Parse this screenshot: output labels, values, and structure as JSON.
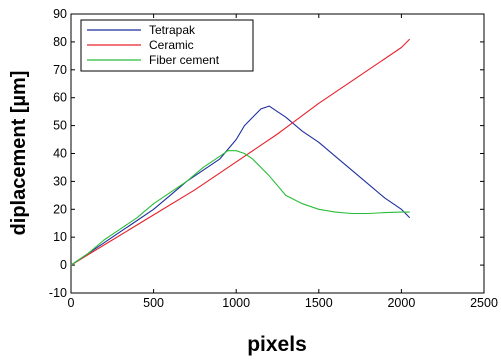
{
  "chart_data": {
    "type": "line",
    "title": "",
    "xlabel": "pixels",
    "ylabel": "diplacement [µm]",
    "xlim": [
      0,
      2500
    ],
    "ylim": [
      -10,
      90
    ],
    "x_ticks": [
      0,
      500,
      1000,
      1500,
      2000,
      2500
    ],
    "y_ticks": [
      -10,
      0,
      10,
      20,
      30,
      40,
      50,
      60,
      70,
      80,
      90
    ],
    "grid": false,
    "legend_position": "top-left",
    "series": [
      {
        "name": "Tetrapak",
        "color": "#1f2f9f",
        "x": [
          0,
          100,
          200,
          300,
          400,
          500,
          600,
          700,
          800,
          900,
          1000,
          1050,
          1100,
          1150,
          1200,
          1250,
          1300,
          1400,
          1500,
          1600,
          1700,
          1800,
          1900,
          2000,
          2050
        ],
        "y": [
          0,
          4,
          8,
          12,
          16,
          20,
          25,
          30,
          34,
          38,
          45,
          50,
          53,
          56,
          57,
          55,
          53,
          48,
          44,
          39,
          34,
          29,
          24,
          20,
          17
        ]
      },
      {
        "name": "Ceramic",
        "color": "#e8202a",
        "x": [
          0,
          250,
          500,
          750,
          1000,
          1250,
          1500,
          1750,
          2000,
          2050
        ],
        "y": [
          0,
          9,
          18,
          27,
          37,
          47,
          58,
          68,
          78,
          81
        ]
      },
      {
        "name": "Fiber cement",
        "color": "#2bbd3a",
        "x": [
          0,
          100,
          200,
          300,
          400,
          500,
          600,
          700,
          800,
          900,
          950,
          1000,
          1050,
          1100,
          1200,
          1300,
          1400,
          1500,
          1600,
          1700,
          1800,
          1900,
          2000,
          2050
        ],
        "y": [
          0,
          4,
          9,
          13,
          17,
          22,
          26,
          30,
          35,
          39,
          41,
          41,
          40,
          38,
          32,
          25,
          22,
          20,
          19,
          18.5,
          18.5,
          18.8,
          19,
          19
        ]
      }
    ]
  }
}
